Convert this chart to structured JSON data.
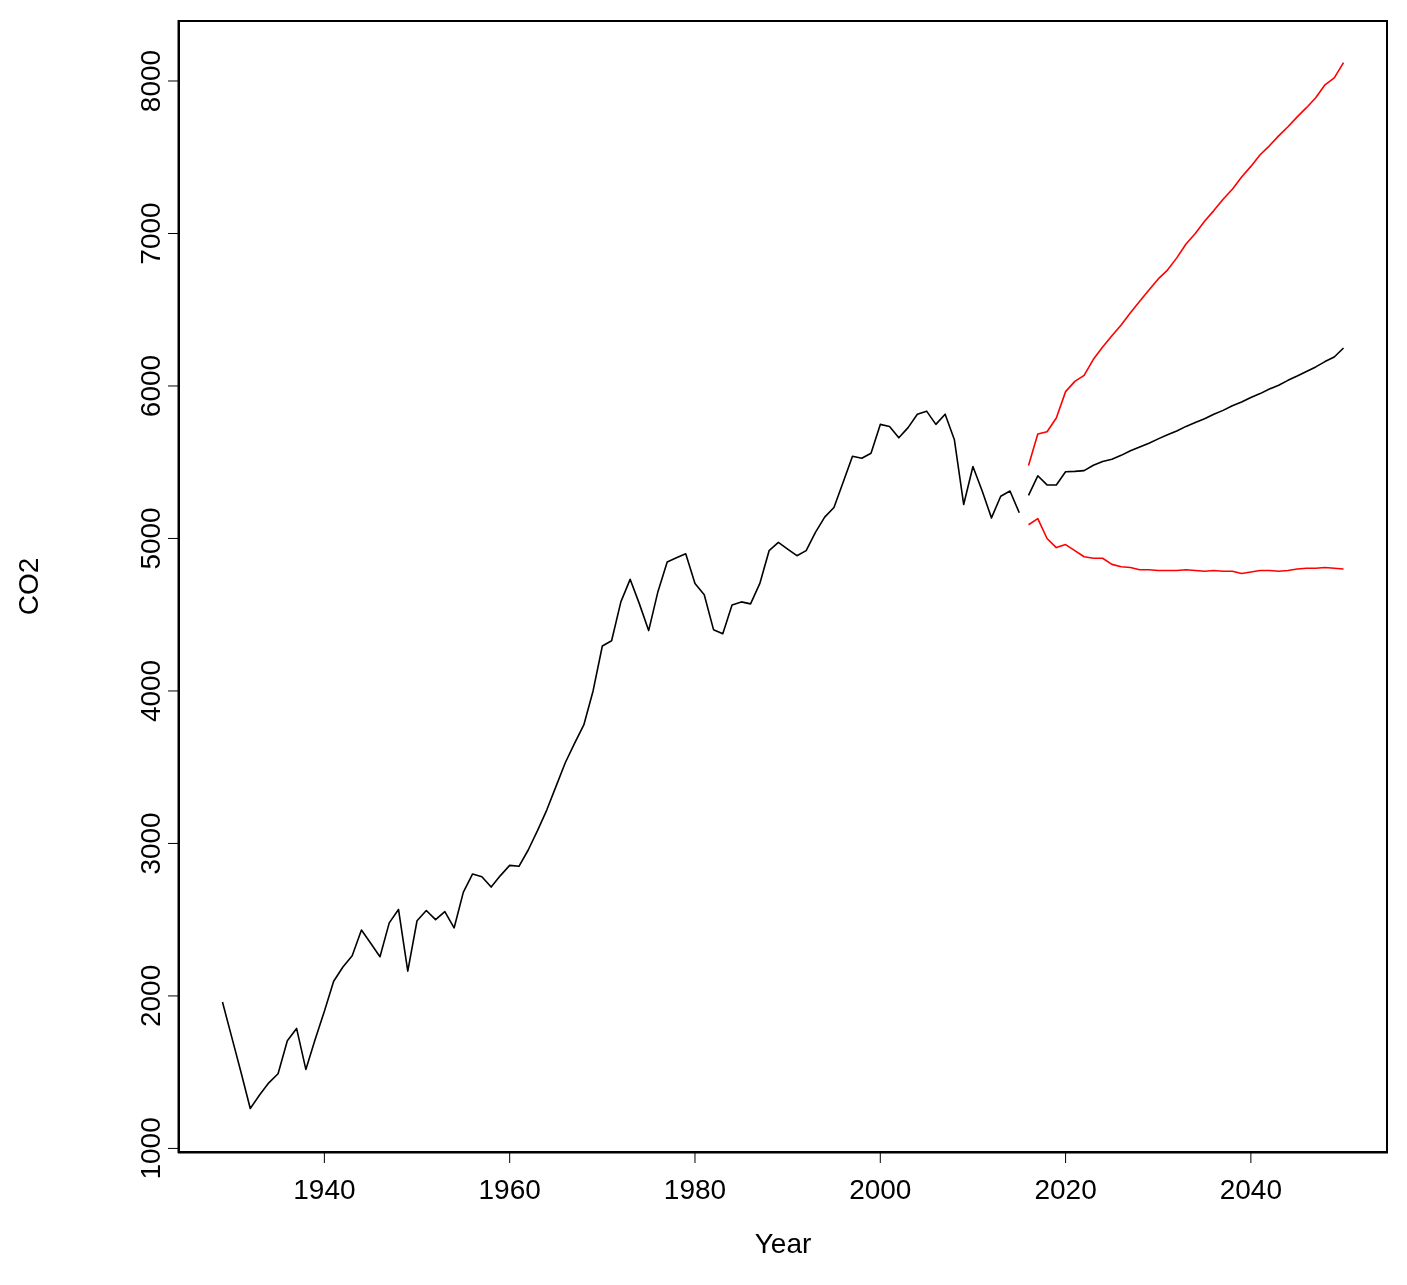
{
  "chart_data": {
    "type": "line",
    "xlabel": "Year",
    "ylabel": "CO2",
    "xlim": [
      1924.2,
      2054.8
    ],
    "xticks": [
      1940,
      1960,
      1980,
      2000,
      2020,
      2040
    ],
    "ylim": [
      970,
      8400
    ],
    "yticks": [
      1000,
      2000,
      3000,
      4000,
      5000,
      6000,
      7000,
      8000
    ],
    "grid": false,
    "marker": "none",
    "line_style": "solid",
    "series": [
      {
        "color": "#000000",
        "x": [
          1929,
          1930,
          1931,
          1932,
          1933,
          1934,
          1935,
          1936,
          1937,
          1938,
          1939,
          1940,
          1941,
          1942,
          1943,
          1944,
          1945,
          1946,
          1947,
          1948,
          1949,
          1950,
          1951,
          1952,
          1953,
          1954,
          1955,
          1956,
          1957,
          1958,
          1959,
          1960,
          1961,
          1962,
          1963,
          1964,
          1965,
          1966,
          1967,
          1968,
          1969,
          1970,
          1971,
          1972,
          1973,
          1974,
          1975,
          1976,
          1977,
          1978,
          1979,
          1980,
          1981,
          1982,
          1983,
          1984,
          1985,
          1986,
          1987,
          1988,
          1989,
          1990,
          1991,
          1992,
          1993,
          1994,
          1995,
          1996,
          1997,
          1998,
          1999,
          2000,
          2001,
          2002,
          2003,
          2004,
          2005,
          2006,
          2007,
          2008,
          2009,
          2010,
          2011,
          2012,
          2013,
          2014,
          2015
        ],
        "values": [
          1960,
          1730,
          1500,
          1262,
          1350,
          1430,
          1490,
          1706,
          1787,
          1518,
          1715,
          1900,
          2096,
          2190,
          2264,
          2432,
          2345,
          2257,
          2479,
          2567,
          2163,
          2493,
          2560,
          2500,
          2553,
          2446,
          2681,
          2800,
          2782,
          2714,
          2789,
          2856,
          2850,
          2957,
          3084,
          3219,
          3374,
          3529,
          3656,
          3777,
          4000,
          4295,
          4329,
          4584,
          4732,
          4571,
          4396,
          4651,
          4846,
          4873,
          4900,
          4705,
          4631,
          4402,
          4375,
          4564,
          4584,
          4571,
          4705,
          4920,
          4974,
          4930,
          4887,
          4920,
          5040,
          5140,
          5203,
          5370,
          5539,
          5526,
          5559,
          5748,
          5734,
          5660,
          5727,
          5815,
          5835,
          5748,
          5815,
          5647,
          5223,
          5472,
          5311,
          5135,
          5277,
          5311,
          5169
        ]
      },
      {
        "color": "#000000",
        "x": [
          2016,
          2017,
          2018,
          2019,
          2020,
          2021,
          2022,
          2023,
          2024,
          2025,
          2026,
          2027,
          2028,
          2029,
          2030,
          2031,
          2032,
          2033,
          2034,
          2035,
          2036,
          2037,
          2038,
          2039,
          2040,
          2041,
          2042,
          2043,
          2044,
          2045,
          2046,
          2047,
          2048,
          2049,
          2050
        ],
        "values": [
          5283,
          5411,
          5351,
          5351,
          5438,
          5440,
          5445,
          5480,
          5505,
          5520,
          5545,
          5575,
          5600,
          5625,
          5653,
          5680,
          5705,
          5735,
          5760,
          5785,
          5815,
          5840,
          5870,
          5895,
          5925,
          5950,
          5980,
          6005,
          6037,
          6065,
          6095,
          6125,
          6160,
          6190,
          6249
        ]
      },
      {
        "color": "#ff0000",
        "x": [
          2016,
          2017,
          2018,
          2019,
          2020,
          2021,
          2022,
          2023,
          2024,
          2025,
          2026,
          2027,
          2028,
          2029,
          2030,
          2031,
          2032,
          2033,
          2034,
          2035,
          2036,
          2037,
          2038,
          2039,
          2040,
          2041,
          2042,
          2043,
          2044,
          2045,
          2046,
          2047,
          2048,
          2049,
          2050
        ],
        "values": [
          5478,
          5685,
          5700,
          5790,
          5963,
          6030,
          6070,
          6175,
          6255,
          6330,
          6400,
          6480,
          6555,
          6630,
          6702,
          6760,
          6840,
          6931,
          7000,
          7080,
          7150,
          7225,
          7290,
          7370,
          7440,
          7516,
          7575,
          7640,
          7700,
          7765,
          7825,
          7890,
          7975,
          8020,
          8120
        ]
      },
      {
        "color": "#ff0000",
        "x": [
          2016,
          2017,
          2018,
          2019,
          2020,
          2021,
          2022,
          2023,
          2024,
          2025,
          2026,
          2027,
          2028,
          2029,
          2030,
          2031,
          2032,
          2033,
          2034,
          2035,
          2036,
          2037,
          2038,
          2039,
          2040,
          2041,
          2042,
          2043,
          2044,
          2045,
          2046,
          2047,
          2048,
          2049,
          2050
        ],
        "values": [
          5090,
          5130,
          5000,
          4940,
          4960,
          4920,
          4880,
          4870,
          4870,
          4830,
          4815,
          4810,
          4795,
          4795,
          4790,
          4790,
          4790,
          4795,
          4790,
          4785,
          4790,
          4785,
          4785,
          4770,
          4780,
          4790,
          4790,
          4785,
          4790,
          4800,
          4805,
          4805,
          4810,
          4805,
          4800
        ]
      }
    ]
  }
}
